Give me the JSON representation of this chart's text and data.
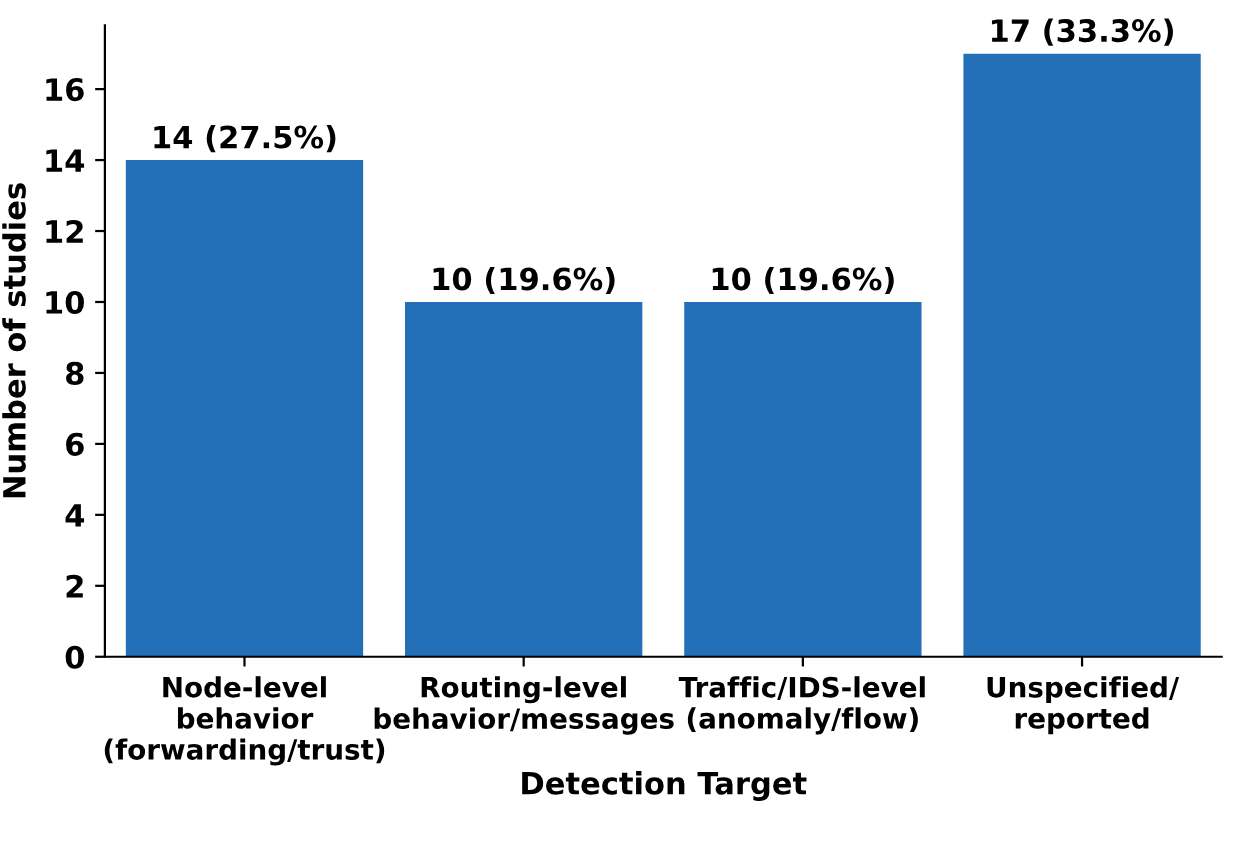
{
  "chart_data": {
    "type": "bar",
    "xlabel": "Detection Target",
    "ylabel": "Number of studies",
    "categories": [
      "Node-level\nbehavior\n(forwarding/trust)",
      "Routing-level\nbehavior/messages",
      "Traffic/IDS-level\n(anomaly/flow)",
      "Unspecified/\nreported"
    ],
    "values": [
      14,
      10,
      10,
      17
    ],
    "value_labels": [
      "14 (27.5%)",
      "10 (19.6%)",
      "10 (19.6%)",
      "17 (33.3%)"
    ],
    "color": "#2470b8",
    "ylim": [
      0,
      17.8
    ],
    "yticks": [
      0,
      2,
      4,
      6,
      8,
      10,
      12,
      14,
      16
    ],
    "grid": false
  }
}
